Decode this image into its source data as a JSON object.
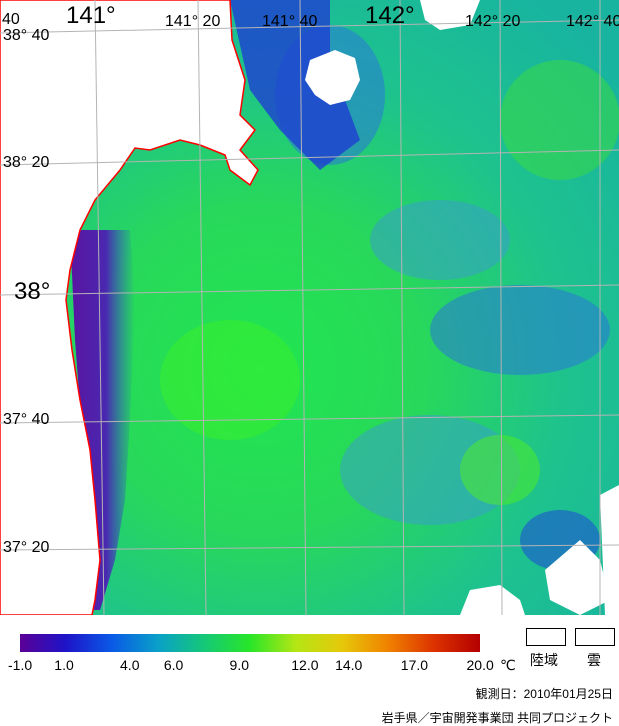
{
  "map": {
    "longitude_labels": [
      {
        "text": "141°",
        "size": "big"
      },
      {
        "text": "141° 20",
        "size": "small"
      },
      {
        "text": "141° 40",
        "size": "small"
      },
      {
        "text": "142°",
        "size": "big"
      },
      {
        "text": "142° 20",
        "size": "small"
      },
      {
        "text": "142° 40",
        "size": "small"
      }
    ],
    "latitude_labels": [
      {
        "text": "38° 40",
        "size": "small"
      },
      {
        "text": "38° 20",
        "size": "small"
      },
      {
        "text": "38°",
        "size": "big"
      },
      {
        "text": "37° 40",
        "size": "small"
      },
      {
        "text": "37° 20",
        "size": "small"
      }
    ],
    "colors": {
      "coastline": "#ff0000",
      "land": "#ffffff",
      "grid": "#b4b4b4"
    }
  },
  "legend": {
    "colorbar_stops": [
      "#5a0096",
      "#1e14c8",
      "#0a5ae6",
      "#0aa0c8",
      "#14c878",
      "#28e628",
      "#b4e614",
      "#e6c80a",
      "#f08200",
      "#dc3200",
      "#b40000"
    ],
    "ticks": [
      "-1.0",
      "1.0",
      "4.0",
      "6.0",
      "9.0",
      "12.0",
      "14.0",
      "17.0",
      "20.0"
    ],
    "unit": "℃",
    "land_label": "陸域",
    "cloud_label": "雲"
  },
  "observation_date": "観測日：2010年01月25日",
  "credit": "岩手県／宇宙開発事業団 共同プロジェクト"
}
